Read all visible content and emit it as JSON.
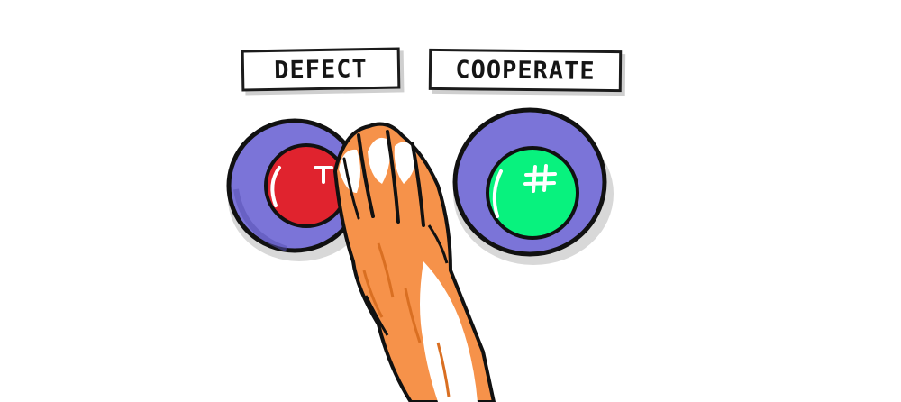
{
  "labels": {
    "defect": "DEFECT",
    "cooperate": "COOPERATE"
  },
  "button_glyphs": {
    "defect": "T",
    "cooperate": "#"
  },
  "colors": {
    "button_housing": "#7b74d8",
    "defect_button": "#e0232e",
    "cooperate_button": "#08f27e",
    "paw_fur": "#f6924a",
    "paw_light_fur": "#ffffff",
    "ink": "#111111"
  },
  "icons": {
    "defect": "red-button-icon",
    "cooperate": "green-button-icon",
    "hand": "fox-paw-icon"
  }
}
